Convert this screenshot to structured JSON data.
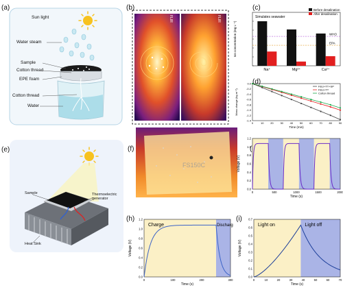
{
  "panels": {
    "a": {
      "label": "(a)",
      "items": [
        "Sun light",
        "Water steam",
        "Sample",
        "Cotton thread",
        "EPE foam",
        "Cotton thread",
        "Water"
      ]
    },
    "b": {
      "label": "(b)",
      "frame_text": [
        "FLIR",
        "FLIR"
      ]
    },
    "c": {
      "label": "(c)"
    },
    "d": {
      "label": "(d)"
    },
    "e": {
      "label": "(e)",
      "items": [
        "Sample",
        "Thermoelectric\ngenerator",
        "Heat Sink"
      ]
    },
    "f": {
      "label": "(f)",
      "overlay_text": "FS150C"
    },
    "g": {
      "label": "(g)"
    },
    "h": {
      "label": "(h)"
    },
    "i": {
      "label": "(i)"
    }
  },
  "colors": {
    "sun": "#f7c21e",
    "water": "#bfe6ee",
    "shade_yellow": "#fbf0c6",
    "shade_blue": "#aab4e6",
    "purple": "#6a2cc8",
    "blue": "#3b63c7"
  },
  "chart_data": [
    {
      "id": "c",
      "type": "bar",
      "title": "Simulates seawater",
      "categories": [
        "Na⁺",
        "Mg²⁺",
        "Ca²⁺"
      ],
      "ylabel": "Ion concentration (mg L⁻¹)",
      "yscale": "log",
      "series": [
        {
          "name": "Before desalination",
          "color": "#111111",
          "values": [
            10000,
            1200,
            420
          ]
        },
        {
          "name": "After desalination",
          "color": "#e21f1f",
          "values": [
            4,
            0.3,
            1.2
          ]
        }
      ],
      "reference_lines": [
        {
          "name": "WHO",
          "value": 200
        },
        {
          "name": "EPA",
          "value": 20
        }
      ]
    },
    {
      "id": "d",
      "type": "line",
      "xlabel": "Time (min)",
      "ylabel": "Mass change (kg m⁻²)",
      "x": [
        0,
        10,
        20,
        30,
        40,
        50,
        60,
        70,
        80,
        90
      ],
      "ylim": [
        -1.4,
        0.0
      ],
      "xticks": [
        0,
        10,
        20,
        30,
        40,
        50,
        60,
        70,
        80,
        90
      ],
      "yticks": [
        0.0,
        -0.2,
        -0.4,
        -0.6,
        -0.8,
        -1.0,
        -1.2,
        -1.4
      ],
      "series": [
        {
          "name": "FEU+TT+SP",
          "color": "#444444",
          "values": [
            0,
            -0.15,
            -0.3,
            -0.45,
            -0.6,
            -0.75,
            -0.9,
            -1.05,
            -1.2,
            -1.36
          ]
        },
        {
          "name": "FEU+TT",
          "color": "#e21f1f",
          "values": [
            0,
            -0.11,
            -0.22,
            -0.33,
            -0.44,
            -0.55,
            -0.66,
            -0.77,
            -0.88,
            -1.0
          ]
        },
        {
          "name": "Cotton thread",
          "color": "#1aa84a",
          "values": [
            0,
            -0.1,
            -0.2,
            -0.3,
            -0.4,
            -0.5,
            -0.6,
            -0.7,
            -0.8,
            -0.92
          ]
        }
      ]
    },
    {
      "id": "g",
      "type": "line",
      "xlabel": "Time (s)",
      "ylabel": "Voltage (V)",
      "xlim": [
        0,
        2000
      ],
      "ylim": [
        0,
        1.2
      ],
      "xticks": [
        0,
        500,
        1000,
        1500,
        2000
      ],
      "yticks": [
        0.0,
        0.2,
        0.4,
        0.6,
        0.8,
        1.0,
        1.2
      ]
    },
    {
      "id": "h",
      "type": "line",
      "xlabel": "Time (s)",
      "ylabel": "Voltage (V)",
      "xlim": [
        0,
        300
      ],
      "ylim": [
        0,
        1.2
      ],
      "xticks": [
        0,
        100,
        200,
        300
      ],
      "yticks": [
        0.0,
        0.2,
        0.4,
        0.6,
        0.8,
        1.0,
        1.2
      ],
      "annotations": [
        "Charge",
        "Discharge"
      ]
    },
    {
      "id": "i",
      "type": "line",
      "xlabel": "Time (s)",
      "ylabel": "Voltage (V)",
      "xlim": [
        0,
        70
      ],
      "ylim": [
        0,
        0.7
      ],
      "xticks": [
        0,
        10,
        20,
        30,
        40,
        50,
        60,
        70
      ],
      "yticks": [
        0.0,
        0.1,
        0.2,
        0.3,
        0.4,
        0.5,
        0.6,
        0.7
      ],
      "annotations": [
        "Light on",
        "Light off"
      ]
    }
  ]
}
